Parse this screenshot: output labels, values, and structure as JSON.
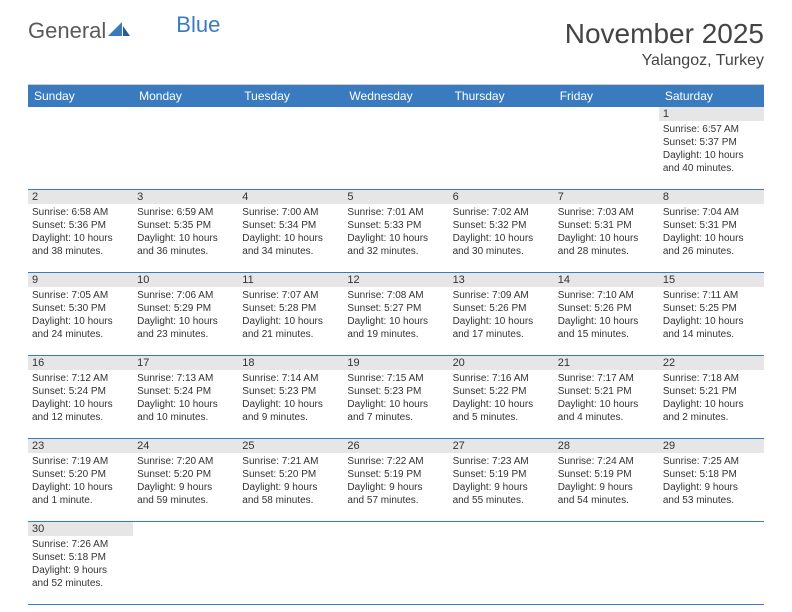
{
  "logo": {
    "text1": "General",
    "text2": "Blue"
  },
  "title": "November 2025",
  "location": "Yalangoz, Turkey",
  "weekdays": [
    "Sunday",
    "Monday",
    "Tuesday",
    "Wednesday",
    "Thursday",
    "Friday",
    "Saturday"
  ],
  "colors": {
    "header_bg": "#3a7bbf",
    "daynum_bg": "#e6e6e6",
    "border": "#3a7bbf"
  },
  "weeks": [
    [
      null,
      null,
      null,
      null,
      null,
      null,
      {
        "n": "1",
        "sr": "Sunrise: 6:57 AM",
        "ss": "Sunset: 5:37 PM",
        "d1": "Daylight: 10 hours",
        "d2": "and 40 minutes."
      }
    ],
    [
      {
        "n": "2",
        "sr": "Sunrise: 6:58 AM",
        "ss": "Sunset: 5:36 PM",
        "d1": "Daylight: 10 hours",
        "d2": "and 38 minutes."
      },
      {
        "n": "3",
        "sr": "Sunrise: 6:59 AM",
        "ss": "Sunset: 5:35 PM",
        "d1": "Daylight: 10 hours",
        "d2": "and 36 minutes."
      },
      {
        "n": "4",
        "sr": "Sunrise: 7:00 AM",
        "ss": "Sunset: 5:34 PM",
        "d1": "Daylight: 10 hours",
        "d2": "and 34 minutes."
      },
      {
        "n": "5",
        "sr": "Sunrise: 7:01 AM",
        "ss": "Sunset: 5:33 PM",
        "d1": "Daylight: 10 hours",
        "d2": "and 32 minutes."
      },
      {
        "n": "6",
        "sr": "Sunrise: 7:02 AM",
        "ss": "Sunset: 5:32 PM",
        "d1": "Daylight: 10 hours",
        "d2": "and 30 minutes."
      },
      {
        "n": "7",
        "sr": "Sunrise: 7:03 AM",
        "ss": "Sunset: 5:31 PM",
        "d1": "Daylight: 10 hours",
        "d2": "and 28 minutes."
      },
      {
        "n": "8",
        "sr": "Sunrise: 7:04 AM",
        "ss": "Sunset: 5:31 PM",
        "d1": "Daylight: 10 hours",
        "d2": "and 26 minutes."
      }
    ],
    [
      {
        "n": "9",
        "sr": "Sunrise: 7:05 AM",
        "ss": "Sunset: 5:30 PM",
        "d1": "Daylight: 10 hours",
        "d2": "and 24 minutes."
      },
      {
        "n": "10",
        "sr": "Sunrise: 7:06 AM",
        "ss": "Sunset: 5:29 PM",
        "d1": "Daylight: 10 hours",
        "d2": "and 23 minutes."
      },
      {
        "n": "11",
        "sr": "Sunrise: 7:07 AM",
        "ss": "Sunset: 5:28 PM",
        "d1": "Daylight: 10 hours",
        "d2": "and 21 minutes."
      },
      {
        "n": "12",
        "sr": "Sunrise: 7:08 AM",
        "ss": "Sunset: 5:27 PM",
        "d1": "Daylight: 10 hours",
        "d2": "and 19 minutes."
      },
      {
        "n": "13",
        "sr": "Sunrise: 7:09 AM",
        "ss": "Sunset: 5:26 PM",
        "d1": "Daylight: 10 hours",
        "d2": "and 17 minutes."
      },
      {
        "n": "14",
        "sr": "Sunrise: 7:10 AM",
        "ss": "Sunset: 5:26 PM",
        "d1": "Daylight: 10 hours",
        "d2": "and 15 minutes."
      },
      {
        "n": "15",
        "sr": "Sunrise: 7:11 AM",
        "ss": "Sunset: 5:25 PM",
        "d1": "Daylight: 10 hours",
        "d2": "and 14 minutes."
      }
    ],
    [
      {
        "n": "16",
        "sr": "Sunrise: 7:12 AM",
        "ss": "Sunset: 5:24 PM",
        "d1": "Daylight: 10 hours",
        "d2": "and 12 minutes."
      },
      {
        "n": "17",
        "sr": "Sunrise: 7:13 AM",
        "ss": "Sunset: 5:24 PM",
        "d1": "Daylight: 10 hours",
        "d2": "and 10 minutes."
      },
      {
        "n": "18",
        "sr": "Sunrise: 7:14 AM",
        "ss": "Sunset: 5:23 PM",
        "d1": "Daylight: 10 hours",
        "d2": "and 9 minutes."
      },
      {
        "n": "19",
        "sr": "Sunrise: 7:15 AM",
        "ss": "Sunset: 5:23 PM",
        "d1": "Daylight: 10 hours",
        "d2": "and 7 minutes."
      },
      {
        "n": "20",
        "sr": "Sunrise: 7:16 AM",
        "ss": "Sunset: 5:22 PM",
        "d1": "Daylight: 10 hours",
        "d2": "and 5 minutes."
      },
      {
        "n": "21",
        "sr": "Sunrise: 7:17 AM",
        "ss": "Sunset: 5:21 PM",
        "d1": "Daylight: 10 hours",
        "d2": "and 4 minutes."
      },
      {
        "n": "22",
        "sr": "Sunrise: 7:18 AM",
        "ss": "Sunset: 5:21 PM",
        "d1": "Daylight: 10 hours",
        "d2": "and 2 minutes."
      }
    ],
    [
      {
        "n": "23",
        "sr": "Sunrise: 7:19 AM",
        "ss": "Sunset: 5:20 PM",
        "d1": "Daylight: 10 hours",
        "d2": "and 1 minute."
      },
      {
        "n": "24",
        "sr": "Sunrise: 7:20 AM",
        "ss": "Sunset: 5:20 PM",
        "d1": "Daylight: 9 hours",
        "d2": "and 59 minutes."
      },
      {
        "n": "25",
        "sr": "Sunrise: 7:21 AM",
        "ss": "Sunset: 5:20 PM",
        "d1": "Daylight: 9 hours",
        "d2": "and 58 minutes."
      },
      {
        "n": "26",
        "sr": "Sunrise: 7:22 AM",
        "ss": "Sunset: 5:19 PM",
        "d1": "Daylight: 9 hours",
        "d2": "and 57 minutes."
      },
      {
        "n": "27",
        "sr": "Sunrise: 7:23 AM",
        "ss": "Sunset: 5:19 PM",
        "d1": "Daylight: 9 hours",
        "d2": "and 55 minutes."
      },
      {
        "n": "28",
        "sr": "Sunrise: 7:24 AM",
        "ss": "Sunset: 5:19 PM",
        "d1": "Daylight: 9 hours",
        "d2": "and 54 minutes."
      },
      {
        "n": "29",
        "sr": "Sunrise: 7:25 AM",
        "ss": "Sunset: 5:18 PM",
        "d1": "Daylight: 9 hours",
        "d2": "and 53 minutes."
      }
    ],
    [
      {
        "n": "30",
        "sr": "Sunrise: 7:26 AM",
        "ss": "Sunset: 5:18 PM",
        "d1": "Daylight: 9 hours",
        "d2": "and 52 minutes."
      },
      null,
      null,
      null,
      null,
      null,
      null
    ]
  ]
}
